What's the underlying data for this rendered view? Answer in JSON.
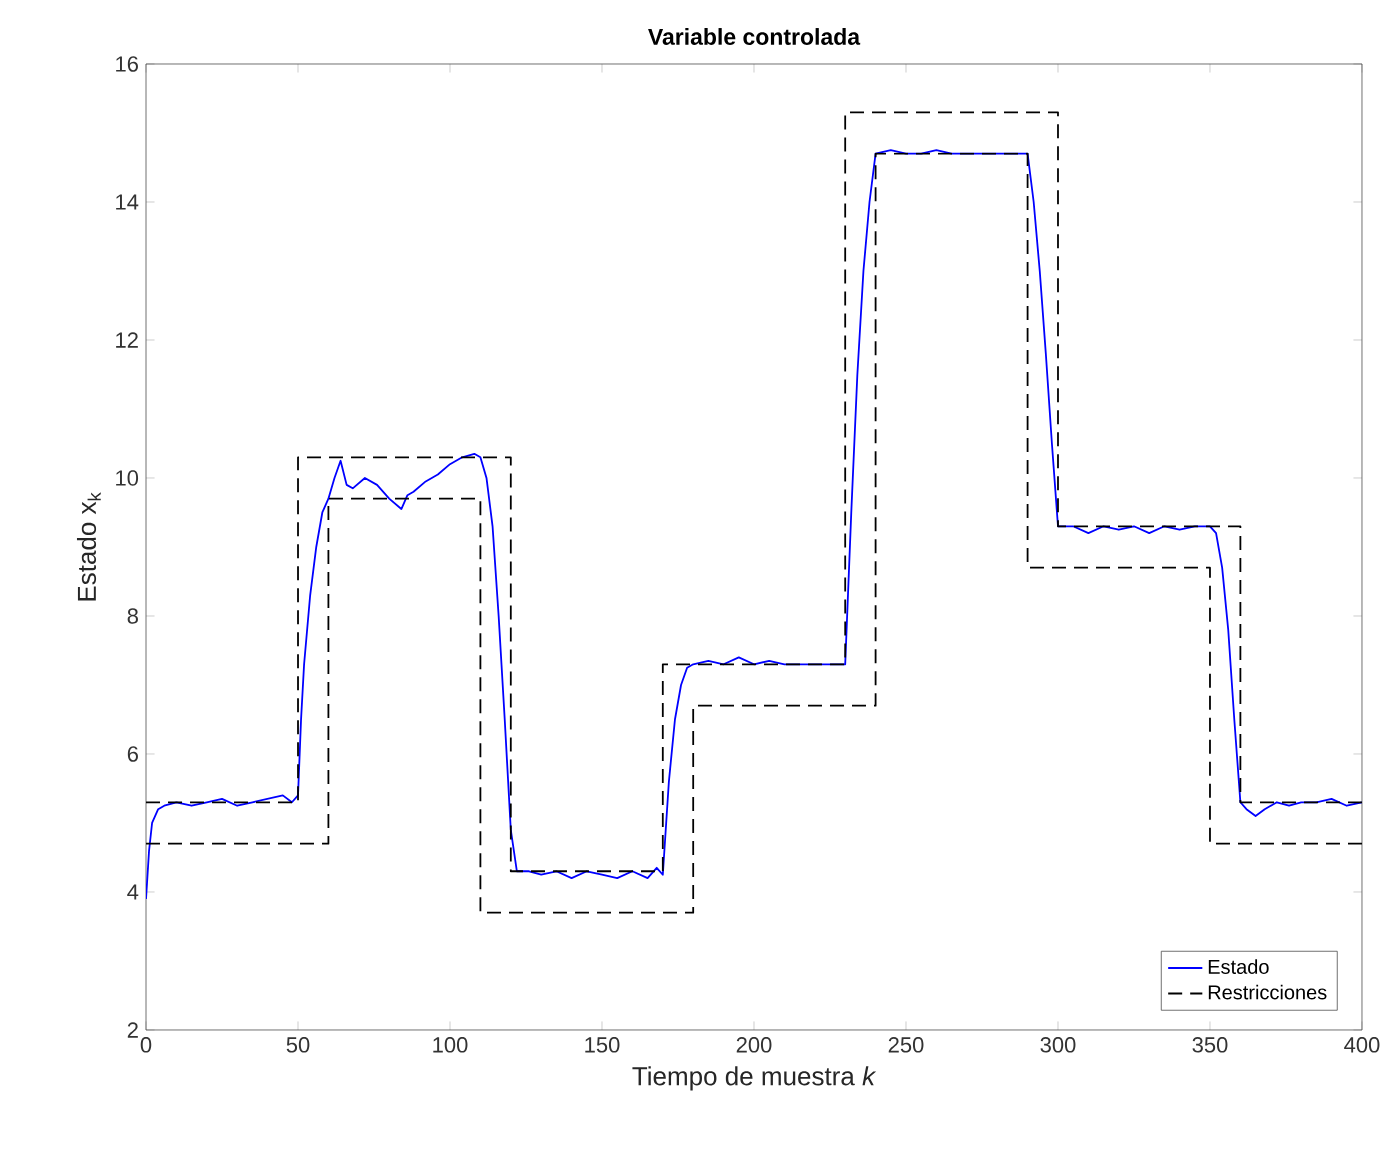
{
  "chart_data": {
    "type": "line",
    "title": "Variable controlada",
    "xlabel": "Tiempo de muestra *k*",
    "ylabel": "Estado x$_{k}$",
    "xlim": [
      0,
      400
    ],
    "ylim": [
      2,
      16
    ],
    "xticks": [
      0,
      50,
      100,
      150,
      200,
      250,
      300,
      350,
      400
    ],
    "yticks": [
      2,
      4,
      6,
      8,
      10,
      12,
      14,
      16
    ],
    "grid": false,
    "legend": "bottom right",
    "marker": "none",
    "series": [
      {
        "name": "Estado",
        "color": "#0000ff",
        "line_style": "solid",
        "x": [
          0,
          1,
          2,
          4,
          6,
          10,
          15,
          20,
          25,
          30,
          35,
          40,
          45,
          48,
          50,
          51,
          52,
          54,
          56,
          58,
          60,
          62,
          64,
          66,
          68,
          72,
          76,
          80,
          84,
          86,
          88,
          92,
          96,
          100,
          104,
          108,
          110,
          112,
          114,
          116,
          118,
          120,
          122,
          126,
          130,
          135,
          140,
          145,
          150,
          155,
          160,
          165,
          168,
          170,
          172,
          174,
          176,
          178,
          180,
          185,
          190,
          195,
          200,
          205,
          210,
          215,
          220,
          225,
          230,
          232,
          234,
          236,
          238,
          240,
          245,
          250,
          255,
          260,
          265,
          270,
          275,
          280,
          285,
          290,
          292,
          294,
          296,
          298,
          300,
          305,
          310,
          315,
          320,
          325,
          330,
          335,
          340,
          345,
          350,
          352,
          354,
          356,
          358,
          360,
          362,
          365,
          368,
          372,
          376,
          380,
          385,
          390,
          395,
          400
        ],
        "values": [
          3.9,
          4.6,
          5.0,
          5.2,
          5.25,
          5.3,
          5.25,
          5.3,
          5.35,
          5.25,
          5.3,
          5.35,
          5.4,
          5.3,
          5.4,
          6.5,
          7.3,
          8.3,
          9.0,
          9.5,
          9.7,
          10.0,
          10.25,
          9.9,
          9.85,
          10.0,
          9.9,
          9.7,
          9.55,
          9.75,
          9.8,
          9.95,
          10.05,
          10.2,
          10.3,
          10.35,
          10.3,
          10.0,
          9.3,
          8.0,
          6.5,
          4.9,
          4.3,
          4.3,
          4.25,
          4.3,
          4.2,
          4.3,
          4.25,
          4.2,
          4.3,
          4.2,
          4.35,
          4.25,
          5.6,
          6.5,
          7.0,
          7.25,
          7.3,
          7.35,
          7.3,
          7.4,
          7.3,
          7.35,
          7.3,
          7.3,
          7.3,
          7.3,
          7.3,
          9.5,
          11.5,
          13.0,
          14.0,
          14.7,
          14.75,
          14.7,
          14.7,
          14.75,
          14.7,
          14.7,
          14.7,
          14.7,
          14.7,
          14.7,
          14.0,
          13.0,
          11.8,
          10.5,
          9.3,
          9.3,
          9.2,
          9.3,
          9.25,
          9.3,
          9.2,
          9.3,
          9.25,
          9.3,
          9.3,
          9.2,
          8.7,
          7.8,
          6.5,
          5.3,
          5.2,
          5.1,
          5.2,
          5.3,
          5.25,
          5.3,
          5.3,
          5.35,
          5.25,
          5.3
        ]
      },
      {
        "name": "Restricciones",
        "color": "#000000",
        "line_style": "dashed",
        "x": [
          0,
          50,
          50,
          120,
          120,
          170,
          170,
          230,
          230,
          300,
          300,
          360,
          360,
          400
        ],
        "values": [
          5.3,
          5.3,
          10.3,
          10.3,
          4.3,
          4.3,
          7.3,
          7.3,
          15.3,
          15.3,
          9.3,
          9.3,
          5.3,
          5.3
        ]
      },
      {
        "color": "#000000",
        "line_style": "dashed",
        "x": [
          0,
          60,
          60,
          110,
          110,
          180,
          180,
          240,
          240,
          290,
          290,
          350,
          350,
          400
        ],
        "values": [
          4.7,
          4.7,
          9.7,
          9.7,
          3.7,
          3.7,
          6.7,
          6.7,
          14.7,
          14.7,
          8.7,
          8.7,
          4.7,
          4.7
        ]
      }
    ]
  }
}
